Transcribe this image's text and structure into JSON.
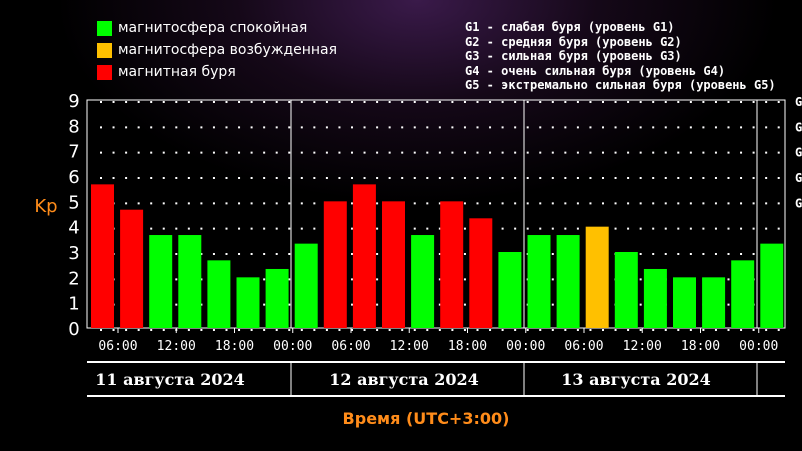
{
  "legend": [
    {
      "label": "магнитосфера спокойная",
      "color": "#00ff00"
    },
    {
      "label": "магнитосфера возбужденная",
      "color": "#ffc000"
    },
    {
      "label": "магнитная буря",
      "color": "#ff0000"
    }
  ],
  "storm_levels": [
    {
      "code": "G1",
      "text": "G1 - слабая буря (уровень G1)",
      "right_label": "G"
    },
    {
      "code": "G2",
      "text": "G2 - средняя буря (уровень G2)",
      "right_label": "G"
    },
    {
      "code": "G3",
      "text": "G3 - сильная буря (уровень G3)",
      "right_label": "G"
    },
    {
      "code": "G4",
      "text": "G4 - очень сильная буря (уровень G4)",
      "right_label": "G"
    },
    {
      "code": "G5",
      "text": "G5 - экстремально сильная буря (уровень G5)",
      "right_label": "G"
    }
  ],
  "colors": {
    "quiet": "#00ff00",
    "active": "#ffc000",
    "storm": "#ff0000",
    "axis_label": "#ff8c1a"
  },
  "chart_data": {
    "type": "bar",
    "ylabel": "Kp",
    "xlabel": "Время (UTC+3:00)",
    "ylim": [
      0,
      9
    ],
    "yticks": [
      0,
      1,
      2,
      3,
      4,
      5,
      6,
      7,
      8,
      9
    ],
    "grid": true,
    "xtick_labels": [
      "06:00",
      "12:00",
      "18:00",
      "00:00",
      "06:00",
      "12:00",
      "18:00",
      "00:00",
      "06:00",
      "12:00",
      "18:00",
      "00:00"
    ],
    "days": [
      "11 августа 2024",
      "12 августа 2024",
      "13 августа 2024"
    ],
    "values": [
      5.67,
      4.67,
      3.67,
      3.67,
      2.67,
      2.0,
      2.33,
      3.33,
      5.0,
      5.67,
      5.0,
      3.67,
      5.0,
      4.33,
      3.0,
      3.67,
      3.67,
      4.0,
      3.0,
      2.33,
      2.0,
      2.0,
      2.67,
      3.33
    ],
    "status": [
      "storm",
      "storm",
      "quiet",
      "quiet",
      "quiet",
      "quiet",
      "quiet",
      "quiet",
      "storm",
      "storm",
      "storm",
      "quiet",
      "storm",
      "storm",
      "quiet",
      "quiet",
      "quiet",
      "active",
      "quiet",
      "quiet",
      "quiet",
      "quiet",
      "quiet",
      "quiet"
    ]
  }
}
